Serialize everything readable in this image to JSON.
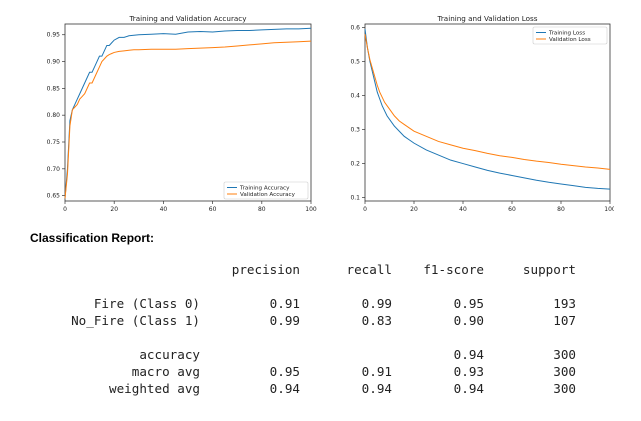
{
  "chart_data": [
    {
      "type": "line",
      "title": "Training and Validation Accuracy",
      "xlabel": "",
      "ylabel": "",
      "xlim": [
        0,
        100
      ],
      "ylim": [
        0.64,
        0.97
      ],
      "xticks": [
        0,
        20,
        40,
        60,
        80,
        100
      ],
      "yticks": [
        0.65,
        0.7,
        0.75,
        0.8,
        0.85,
        0.9,
        0.95
      ],
      "legend_position": "bottom-right",
      "grid": false,
      "series": [
        {
          "name": "Training Accuracy",
          "color": "#1f77b4",
          "x": [
            0,
            1,
            2,
            3,
            4,
            5,
            6,
            7,
            8,
            9,
            10,
            11,
            12,
            13,
            14,
            15,
            16,
            17,
            18,
            19,
            20,
            22,
            24,
            26,
            28,
            30,
            35,
            40,
            45,
            50,
            55,
            60,
            65,
            70,
            75,
            80,
            85,
            90,
            95,
            100
          ],
          "y": [
            0.645,
            0.7,
            0.79,
            0.81,
            0.82,
            0.83,
            0.84,
            0.85,
            0.86,
            0.87,
            0.88,
            0.88,
            0.89,
            0.9,
            0.91,
            0.91,
            0.92,
            0.93,
            0.93,
            0.935,
            0.94,
            0.945,
            0.945,
            0.948,
            0.949,
            0.95,
            0.951,
            0.952,
            0.951,
            0.955,
            0.956,
            0.955,
            0.957,
            0.958,
            0.958,
            0.959,
            0.96,
            0.961,
            0.961,
            0.962
          ]
        },
        {
          "name": "Validation Accuracy",
          "color": "#ff7f0e",
          "x": [
            0,
            1,
            2,
            3,
            4,
            5,
            6,
            7,
            8,
            9,
            10,
            11,
            12,
            13,
            14,
            15,
            16,
            17,
            18,
            19,
            20,
            22,
            24,
            26,
            28,
            30,
            35,
            40,
            45,
            50,
            55,
            60,
            65,
            70,
            75,
            80,
            85,
            90,
            95,
            100
          ],
          "y": [
            0.645,
            0.69,
            0.78,
            0.81,
            0.815,
            0.82,
            0.83,
            0.835,
            0.84,
            0.85,
            0.86,
            0.86,
            0.87,
            0.88,
            0.89,
            0.9,
            0.905,
            0.91,
            0.913,
            0.915,
            0.917,
            0.919,
            0.92,
            0.921,
            0.922,
            0.922,
            0.923,
            0.923,
            0.923,
            0.924,
            0.925,
            0.926,
            0.927,
            0.929,
            0.931,
            0.933,
            0.935,
            0.936,
            0.937,
            0.938
          ]
        }
      ]
    },
    {
      "type": "line",
      "title": "Training and Validation Loss",
      "xlabel": "",
      "ylabel": "",
      "xlim": [
        0,
        100
      ],
      "ylim": [
        0.09,
        0.61
      ],
      "xticks": [
        0,
        20,
        40,
        60,
        80,
        100
      ],
      "yticks": [
        0.1,
        0.2,
        0.3,
        0.4,
        0.5,
        0.6
      ],
      "legend_position": "top-right",
      "grid": false,
      "series": [
        {
          "name": "Training Loss",
          "color": "#1f77b4",
          "x": [
            0,
            1,
            2,
            3,
            4,
            5,
            6,
            7,
            8,
            9,
            10,
            12,
            14,
            16,
            18,
            20,
            25,
            30,
            35,
            40,
            45,
            50,
            55,
            60,
            65,
            70,
            75,
            80,
            85,
            90,
            95,
            100
          ],
          "y": [
            0.595,
            0.54,
            0.5,
            0.47,
            0.44,
            0.41,
            0.39,
            0.37,
            0.355,
            0.34,
            0.33,
            0.31,
            0.295,
            0.28,
            0.27,
            0.26,
            0.24,
            0.225,
            0.21,
            0.2,
            0.19,
            0.18,
            0.172,
            0.165,
            0.158,
            0.151,
            0.145,
            0.14,
            0.135,
            0.13,
            0.127,
            0.125
          ]
        },
        {
          "name": "Validation Loss",
          "color": "#ff7f0e",
          "x": [
            0,
            1,
            2,
            3,
            4,
            5,
            6,
            7,
            8,
            9,
            10,
            12,
            14,
            16,
            18,
            20,
            25,
            30,
            35,
            40,
            45,
            50,
            55,
            60,
            65,
            70,
            75,
            80,
            85,
            90,
            95,
            100
          ],
          "y": [
            0.58,
            0.54,
            0.505,
            0.48,
            0.455,
            0.43,
            0.41,
            0.395,
            0.38,
            0.37,
            0.36,
            0.34,
            0.325,
            0.315,
            0.305,
            0.295,
            0.28,
            0.265,
            0.255,
            0.245,
            0.238,
            0.23,
            0.223,
            0.218,
            0.212,
            0.207,
            0.203,
            0.198,
            0.194,
            0.19,
            0.187,
            0.183
          ]
        }
      ]
    }
  ],
  "report": {
    "heading": "Classification Report:",
    "columns": [
      "precision",
      "recall",
      "f1-score",
      "support"
    ],
    "rows": [
      {
        "label": "Fire (Class 0)",
        "precision": "0.91",
        "recall": "0.99",
        "f1": "0.95",
        "support": "193"
      },
      {
        "label": "No_Fire (Class 1)",
        "precision": "0.99",
        "recall": "0.83",
        "f1": "0.90",
        "support": "107"
      }
    ],
    "summary": [
      {
        "label": "accuracy",
        "precision": "",
        "recall": "",
        "f1": "0.94",
        "support": "300"
      },
      {
        "label": "macro avg",
        "precision": "0.95",
        "recall": "0.91",
        "f1": "0.93",
        "support": "300"
      },
      {
        "label": "weighted avg",
        "precision": "0.94",
        "recall": "0.94",
        "f1": "0.94",
        "support": "300"
      }
    ]
  }
}
